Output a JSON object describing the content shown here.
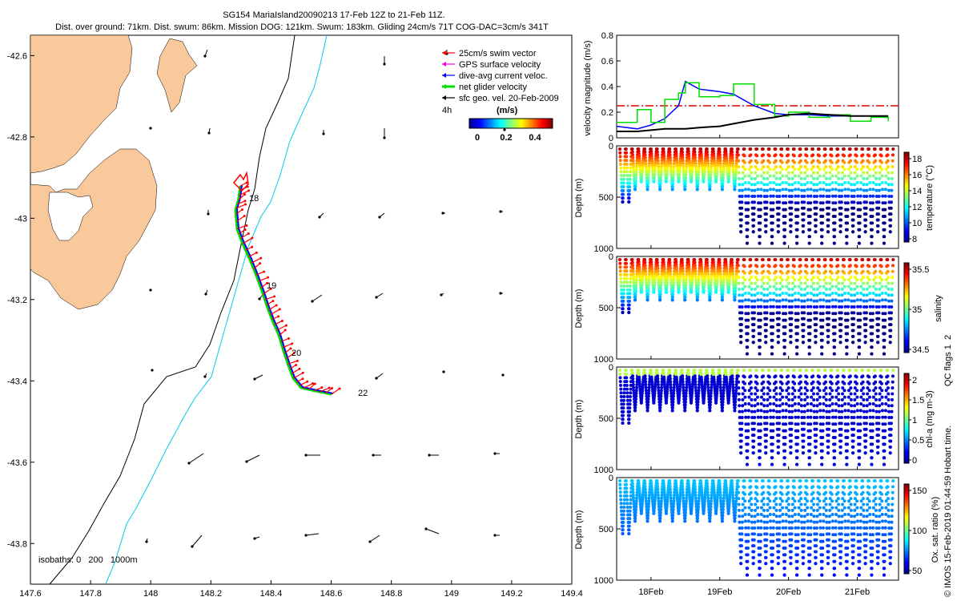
{
  "title": {
    "line1": "SG154 MariaIsland20090213 17-Feb 12Z to 21-Feb 11Z.",
    "line2": "Dist. over ground: 71km. Dist. swum: 86km. Mission DOG: 121km. Swum: 183km. Gliding 24cm/s 71T COG-DAC=3cm/s 341T"
  },
  "colors": {
    "land": "#f9c89b",
    "isobath_200": "#000000",
    "isobath_1000": "#00ccee",
    "swim": "#ff0000",
    "gps": "#ee00ee",
    "dac": "#0000ff",
    "net": "#00dd00",
    "sfc": "#000000",
    "threshold": "#dd0000"
  },
  "legend": {
    "items": [
      {
        "label": "25cm/s swim vector",
        "color": "#ff0000"
      },
      {
        "label": "GPS surface velocity",
        "color": "#ee00ee"
      },
      {
        "label": "dive-avg current veloc.",
        "color": "#0000ff"
      },
      {
        "label": "net glider velocity",
        "color": "#00dd00"
      },
      {
        "label": "sfc geo. vel. 20-Feb-2009",
        "color": "#000000"
      }
    ],
    "time_label": "4h",
    "colorbar_title": "(m/s)",
    "colorbar_ticks": [
      "0",
      "0.2",
      "0.4"
    ]
  },
  "map": {
    "xlim": [
      147.6,
      149.4
    ],
    "ylim": [
      -43.9,
      -42.55
    ],
    "xticks": [
      "147.6",
      "147.8",
      "148",
      "148.2",
      "148.4",
      "148.6",
      "148.8",
      "149",
      "149.2",
      "149.4"
    ],
    "yticks": [
      "-42.6",
      "-42.8",
      "-43",
      "-43.2",
      "-43.4",
      "-43.6",
      "-43.8"
    ],
    "isobath_note": "isobaths: 0   200   1000m",
    "day_labels": [
      "18",
      "19",
      "20",
      "22"
    ]
  },
  "chart_data": [
    {
      "type": "line",
      "title": "velocity magnitude",
      "ylabel": "velocity magnitude (m/s)",
      "ylim": [
        0,
        0.8
      ],
      "yticks": [
        "0",
        "0.2",
        "0.4",
        "0.6",
        "0.8"
      ],
      "x": [
        17.5,
        17.8,
        18.0,
        18.2,
        18.4,
        18.5,
        18.7,
        19.0,
        19.2,
        19.5,
        19.8,
        20.0,
        20.3,
        20.6,
        20.9,
        21.2,
        21.45
      ],
      "series": [
        {
          "name": "dive-avg current veloc.",
          "values": [
            0.09,
            0.07,
            0.1,
            0.15,
            0.25,
            0.44,
            0.38,
            0.36,
            0.34,
            0.25,
            0.19,
            0.18,
            0.18,
            0.17,
            0.17,
            0.17,
            0.17
          ]
        },
        {
          "name": "net glider velocity",
          "values": [
            0.12,
            0.22,
            0.12,
            0.3,
            0.35,
            0.43,
            0.32,
            0.33,
            0.42,
            0.26,
            0.17,
            0.2,
            0.16,
            0.18,
            0.13,
            0.16,
            0.13
          ]
        },
        {
          "name": "sfc geo. vel. 20-Feb-2009",
          "values": [
            0.05,
            0.05,
            0.06,
            0.07,
            0.07,
            0.07,
            0.08,
            0.09,
            0.11,
            0.14,
            0.16,
            0.18,
            0.19,
            0.18,
            0.17,
            0.17,
            0.17
          ]
        }
      ],
      "threshold": 0.25
    },
    {
      "type": "scatter",
      "title": "temperature section",
      "ylabel": "Depth (m)",
      "colorbar_label": "temperature (°C)",
      "colorbar_ticks": [
        "8",
        "10",
        "12",
        "14",
        "16",
        "18"
      ],
      "yticks": [
        "0",
        "500",
        "1000"
      ]
    },
    {
      "type": "scatter",
      "title": "salinity section",
      "ylabel": "Depth (m)",
      "colorbar_label": "salinity",
      "colorbar_ticks": [
        "34.5",
        "35",
        "35.5"
      ],
      "yticks": [
        "0",
        "500",
        "1000"
      ]
    },
    {
      "type": "scatter",
      "title": "chl-a section",
      "ylabel": "Depth (m)",
      "colorbar_label": "chl-a (mg m-3)",
      "colorbar_ticks": [
        "0",
        "0.5",
        "1",
        "1.5",
        "2"
      ],
      "yticks": [
        "0",
        "500",
        "1000"
      ]
    },
    {
      "type": "scatter",
      "title": "oxygen section",
      "ylabel": "Depth (m)",
      "colorbar_label": "Ox. sat. ratio (%)",
      "colorbar_ticks": [
        "50",
        "100",
        "150"
      ],
      "yticks": [
        "0",
        "500",
        "1000"
      ]
    }
  ],
  "time_axis": {
    "xlim": [
      17.5,
      21.6
    ],
    "ticks": [
      "18Feb",
      "19Feb",
      "20Feb",
      "21Feb"
    ]
  },
  "qc_flags": "QC flags 1  2",
  "credit": "© IMOS 15-Feb-2019 01:44:59 Hobart time."
}
